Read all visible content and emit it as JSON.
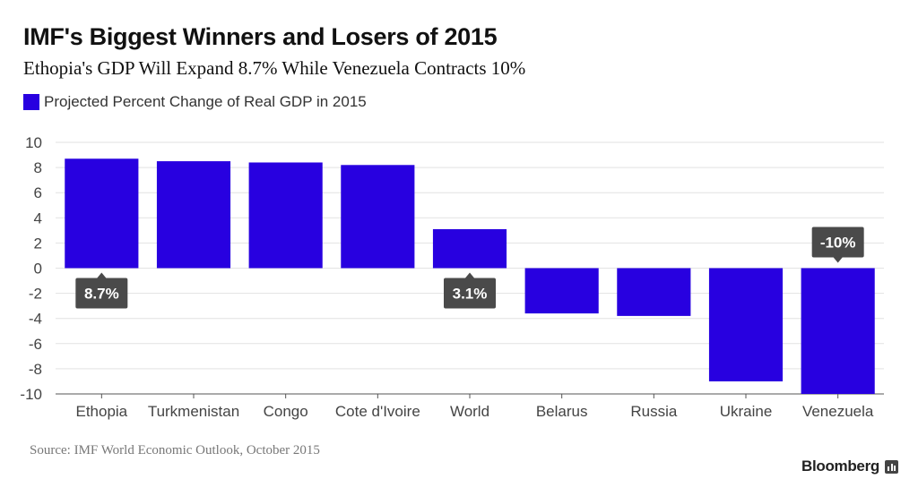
{
  "header": {
    "title": "IMF's Biggest Winners and Losers of 2015",
    "subtitle": "Ethopia's GDP Will Expand 8.7% While Venezuela Contracts 10%"
  },
  "legend": {
    "label": "Projected Percent Change of Real GDP in 2015",
    "color": "#2800e0"
  },
  "footer": {
    "source": "Source: IMF World Economic Outlook, October 2015",
    "brand": "Bloomberg",
    "brand_icon": "bloomberg-terminal-icon"
  },
  "chart_data": {
    "type": "bar",
    "categories": [
      "Ethopia",
      "Turkmenistan",
      "Congo",
      "Cote d'Ivoire",
      "World",
      "Belarus",
      "Russia",
      "Ukraine",
      "Venezuela"
    ],
    "series": [
      {
        "name": "Projected Percent Change of Real GDP in 2015",
        "values": [
          8.7,
          8.5,
          8.4,
          8.2,
          3.1,
          -3.6,
          -3.8,
          -9.0,
          -10.0
        ]
      }
    ],
    "title": "IMF's Biggest Winners and Losers of 2015",
    "subtitle": "Ethopia's GDP Will Expand 8.7% While Venezuela Contracts 10%",
    "xlabel": "",
    "ylabel": "",
    "ylim": [
      -10,
      10
    ],
    "yticks": [
      10,
      8,
      6,
      4,
      2,
      0,
      -2,
      -4,
      -6,
      -8,
      -10
    ],
    "grid": true,
    "legend_position": "top-left",
    "bar_color": "#2800e0",
    "annotations": [
      {
        "category": "Ethopia",
        "text": "8.7%",
        "placement": "below"
      },
      {
        "category": "World",
        "text": "3.1%",
        "placement": "below"
      },
      {
        "category": "Venezuela",
        "text": "-10%",
        "placement": "above"
      }
    ]
  }
}
